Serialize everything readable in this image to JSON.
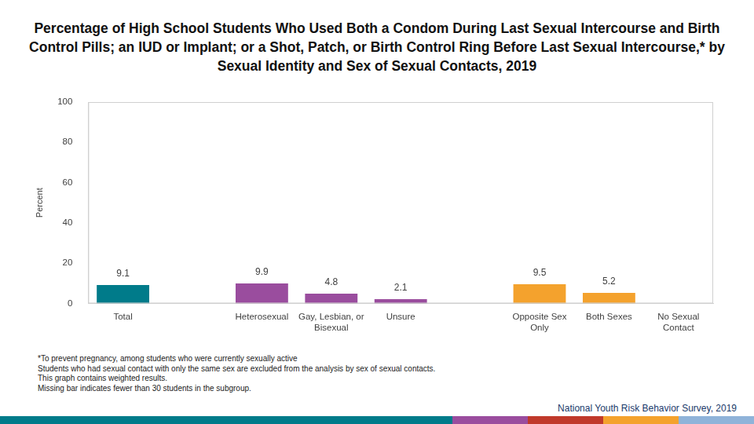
{
  "chart_data": {
    "type": "bar",
    "title": "Percentage of High School Students Who Used Both a Condom During Last Sexual Intercourse and Birth Control Pills; an IUD or Implant; or a Shot, Patch, or Birth Control Ring Before Last Sexual Intercourse,* by Sexual Identity and Sex of Sexual Contacts, 2019",
    "y_label": "Percent",
    "categories": [
      "Total",
      null,
      "Heterosexual",
      "Gay, Lesbian, or Bisexual",
      "Unsure",
      null,
      "Opposite Sex Only",
      "Both Sexes",
      "No Sexual Contact"
    ],
    "values": [
      9.1,
      null,
      9.9,
      4.8,
      2.1,
      null,
      9.5,
      5.2,
      null
    ],
    "colors": [
      "#007b8a",
      "#007b8a",
      "#9a4d9e",
      "#9a4d9e",
      "#9a4d9e",
      "#f4a22d",
      "#f4a22d",
      "#f4a22d",
      "#f4a22d"
    ],
    "ylim": [
      0,
      100
    ],
    "yticks": [
      0,
      20,
      40,
      60,
      80,
      100
    ],
    "grid": false,
    "data_labels": true,
    "notes": [
      "*To prevent pregnancy, among students who were currently sexually active",
      "Students who had sexual contact with only the same sex are excluded from the analysis by sex of sexual contacts.",
      "This graph contains weighted results.",
      "Missing bar indicates fewer than 30 students in the subgroup."
    ],
    "source": "National Youth Risk Behavior Survey, 2019"
  }
}
